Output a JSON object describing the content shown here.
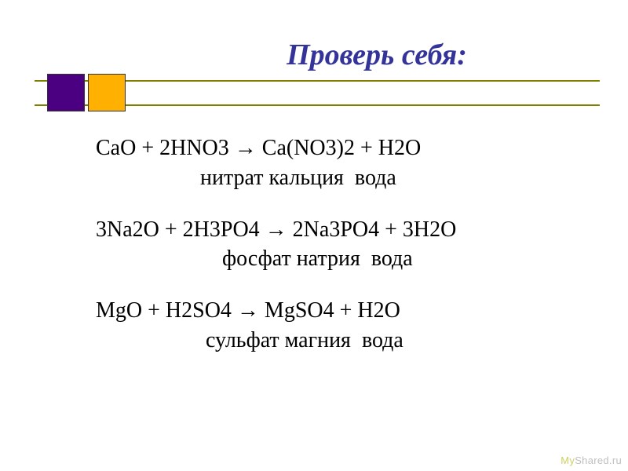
{
  "title": "Проверь себя:",
  "colors": {
    "title_color": "#333399",
    "line_color": "#808000",
    "square_left": "#4a0080",
    "square_right": "#ffb000",
    "text_color": "#000000",
    "background": "#ffffff",
    "watermark_my": "#cfcf66",
    "watermark_rest": "#bfbfbf"
  },
  "typography": {
    "title_fontsize_pt": 28,
    "title_style": "bold italic",
    "body_fontsize_pt": 21,
    "font_family": "Times New Roman"
  },
  "equations": [
    {
      "formula": "CaO + 2HNO3 → Ca(NO3)2 + H2O",
      "description": "                   нитрат кальция  вода"
    },
    {
      "formula": "3Na2O + 2H3PO4 → 2Na3PO4 + 3H2O",
      "description": "                       фосфат натрия  вода"
    },
    {
      "formula": "MgO + H2SO4 → MgSO4 + H2O",
      "description": "                    сульфат магния  вода"
    }
  ],
  "watermark": {
    "part1": "My",
    "part2": "Shared.ru"
  }
}
